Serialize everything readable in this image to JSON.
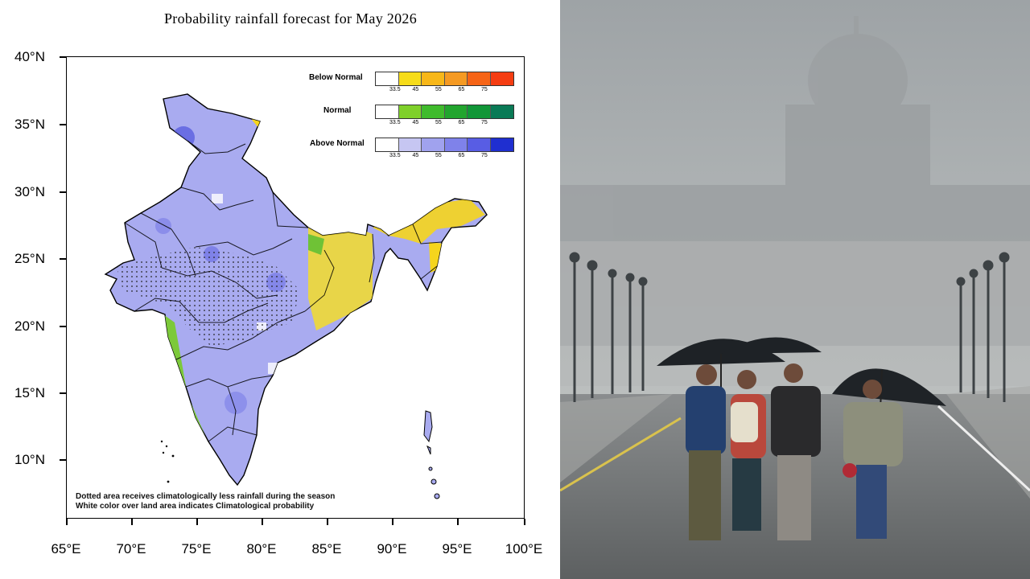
{
  "map": {
    "title": "Probability rainfall forecast for May 2026",
    "lat_labels": [
      "40°N",
      "35°N",
      "30°N",
      "25°N",
      "20°N",
      "15°N",
      "10°N"
    ],
    "lon_labels": [
      "65°E",
      "70°E",
      "75°E",
      "80°E",
      "85°E",
      "90°E",
      "95°E",
      "100°E"
    ],
    "legend": [
      {
        "label": "Below Normal",
        "colors": [
          "#ffffff",
          "#f6dc1a",
          "#f7b719",
          "#f59a23",
          "#f66416",
          "#f53d12"
        ],
        "ticks": [
          "33.5",
          "45",
          "55",
          "65",
          "75"
        ]
      },
      {
        "label": "Normal",
        "colors": [
          "#ffffff",
          "#7fd02a",
          "#3fbb2c",
          "#22a52e",
          "#119637",
          "#0a7a56"
        ],
        "ticks": [
          "33.5",
          "45",
          "55",
          "65",
          "75"
        ]
      },
      {
        "label": "Above Normal",
        "colors": [
          "#ffffff",
          "#c6c6f2",
          "#a0a2ee",
          "#7f82ea",
          "#585de4",
          "#1f2fd0"
        ],
        "ticks": [
          "33.5",
          "45",
          "55",
          "65",
          "75"
        ]
      }
    ],
    "note_line1": "Dotted area receives climatologically less rainfall during the season",
    "note_line2": "White color over land area indicates Climatological probability"
  }
}
